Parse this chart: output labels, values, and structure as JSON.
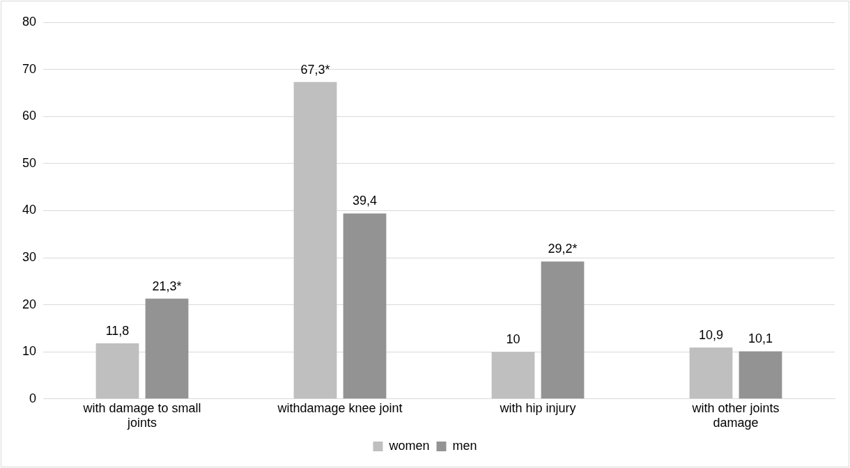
{
  "chart_data": {
    "type": "bar",
    "categories": [
      "with damage to small joints",
      "withdamage knee joint",
      "with hip injury",
      "with other joints damage"
    ],
    "series": [
      {
        "name": "women",
        "color": "#bfbfbf",
        "values": [
          11.8,
          67.3,
          10,
          10.9
        ],
        "value_labels": [
          "11,8",
          "67,3*",
          "10",
          "10,9"
        ]
      },
      {
        "name": "men",
        "color": "#939393",
        "values": [
          21.3,
          39.4,
          29.2,
          10.1
        ],
        "value_labels": [
          "21,3*",
          "39,4",
          "29,2*",
          "10,1"
        ]
      }
    ],
    "ylim": [
      0,
      80
    ],
    "yticks": [
      0,
      10,
      20,
      30,
      40,
      50,
      60,
      70,
      80
    ],
    "grid": "y",
    "legend": "bottom"
  }
}
